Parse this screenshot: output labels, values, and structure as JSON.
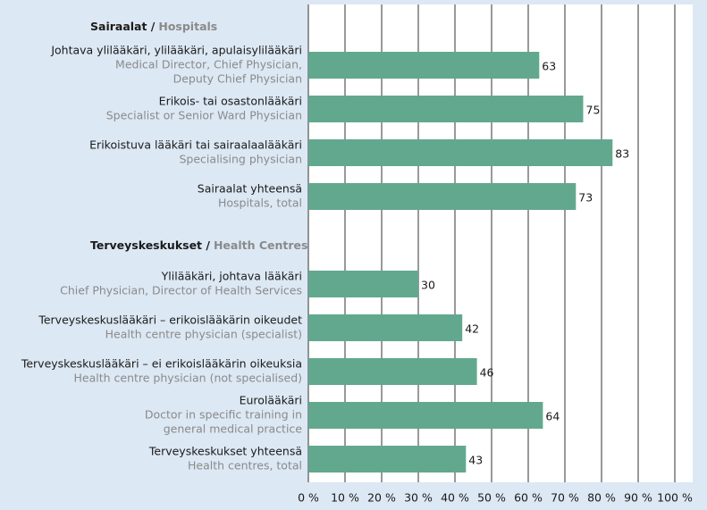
{
  "chart_data": {
    "type": "bar",
    "groups": [
      {
        "label": "Sairaalat /",
        "label_en": "Hospitals",
        "categories": [
          "Johtava ylilääkäri, ylilääkäri, apulaisylilääkäri",
          "Erikois- tai osastonlääkäri",
          "Erikoistuva lääkäri tai sairaalaalääkäri",
          "Sairaalat yhteensä"
        ],
        "categories_en": [
          [
            "Medical Director, Chief Physician,",
            "Deputy Chief Physician"
          ],
          [
            "Specialist or Senior Ward Physician"
          ],
          [
            "Specialising physician"
          ],
          [
            "Hospitals, total"
          ]
        ],
        "values": [
          63,
          75,
          83,
          73
        ]
      },
      {
        "label": "Terveyskeskukset /",
        "label_en": "Health Centres",
        "categories": [
          "Ylilääkäri, johtava lääkäri",
          "Terveyskeskuslääkäri – erikoislääkärin oikeudet",
          "Terveyskeskuslääkäri – ei erikoislääkärin oikeuksia",
          "Eurolääkäri",
          "Terveyskeskukset yhteensä"
        ],
        "categories_en": [
          [
            "Chief Physician, Director of Health Services"
          ],
          [
            "Health centre physician (specialist)"
          ],
          [
            "Health centre physician (not specialised)"
          ],
          [
            "Doctor in specific training in",
            "general medical practice"
          ],
          [
            "Health centres, total"
          ]
        ],
        "values": [
          30,
          42,
          46,
          64,
          43
        ]
      }
    ],
    "color": "#62a88f",
    "xlim": [
      0,
      100
    ],
    "xticks": [
      {
        "value": 0,
        "label": "0 %"
      },
      {
        "value": 10,
        "label": "10 %"
      },
      {
        "value": 20,
        "label": "20 %"
      },
      {
        "value": 30,
        "label": "30 %"
      },
      {
        "value": 40,
        "label": "40 %"
      },
      {
        "value": 50,
        "label": "50 %"
      },
      {
        "value": 60,
        "label": "60 %"
      },
      {
        "value": 70,
        "label": "70 %"
      },
      {
        "value": 80,
        "label": "80 %"
      },
      {
        "value": 90,
        "label": "90 %"
      },
      {
        "value": 100,
        "label": "100 %"
      }
    ],
    "grid": true
  }
}
